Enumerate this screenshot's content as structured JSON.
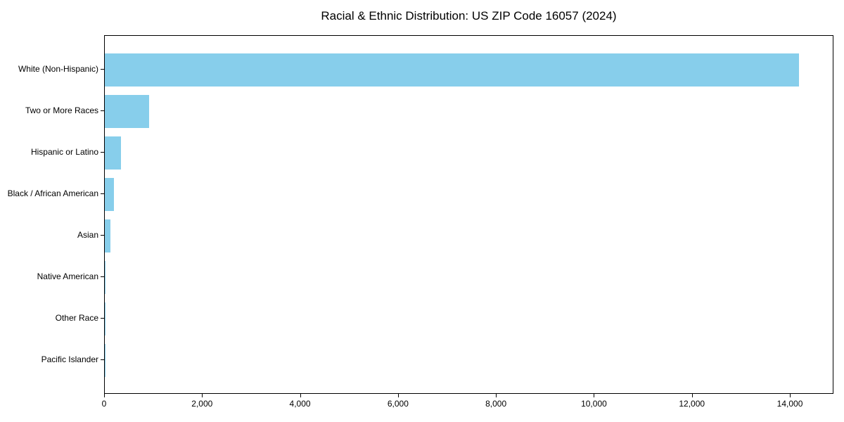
{
  "chart_data": {
    "type": "bar",
    "orientation": "horizontal",
    "title": "Racial & Ethnic Distribution: US ZIP Code 16057 (2024)",
    "categories": [
      "White (Non-Hispanic)",
      "Two or More Races",
      "Hispanic or Latino",
      "Black / African American",
      "Asian",
      "Native American",
      "Other Race",
      "Pacific Islander"
    ],
    "values": [
      14175,
      910,
      335,
      180,
      120,
      15,
      10,
      5
    ],
    "xlabel": "",
    "ylabel": "",
    "xlim": [
      0,
      14890
    ],
    "xtick_values": [
      0,
      2000,
      4000,
      6000,
      8000,
      10000,
      12000,
      14000
    ],
    "xtick_labels": [
      "0",
      "2,000",
      "4,000",
      "6,000",
      "8,000",
      "10,000",
      "12,000",
      "14,000"
    ],
    "bar_color": "#87ceeb",
    "axis_color": "#000000",
    "text_color": "#000000",
    "grid": false,
    "legend": null
  }
}
